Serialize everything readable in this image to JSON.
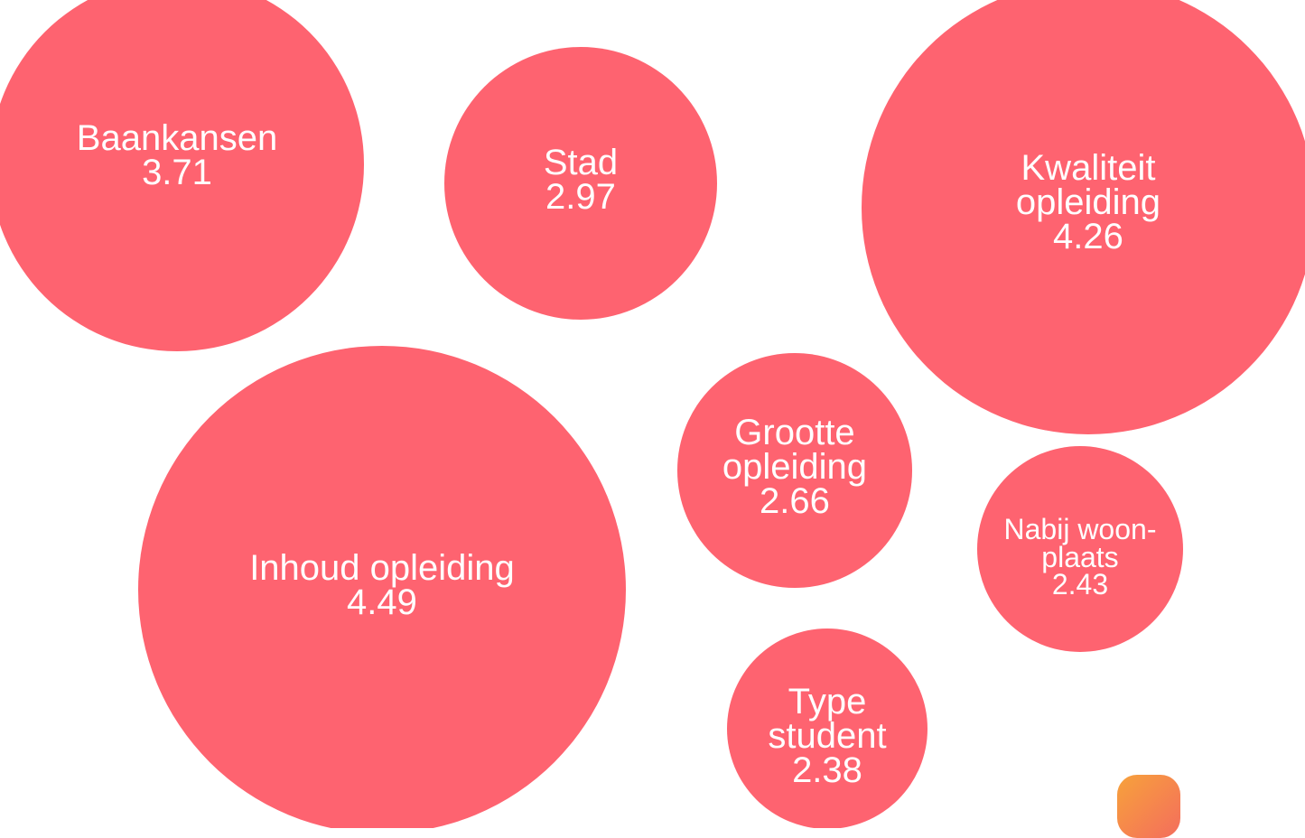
{
  "chart_data": {
    "type": "bubble",
    "color": "#fe6370",
    "categories": [
      "Baankansen",
      "Stad",
      "Kwaliteit opleiding",
      "Inhoud opleiding",
      "Grootte opleiding",
      "Nabij woon-plaats",
      "Type student"
    ],
    "values": [
      3.71,
      2.97,
      4.26,
      4.49,
      2.66,
      2.43,
      2.38
    ]
  }
}
